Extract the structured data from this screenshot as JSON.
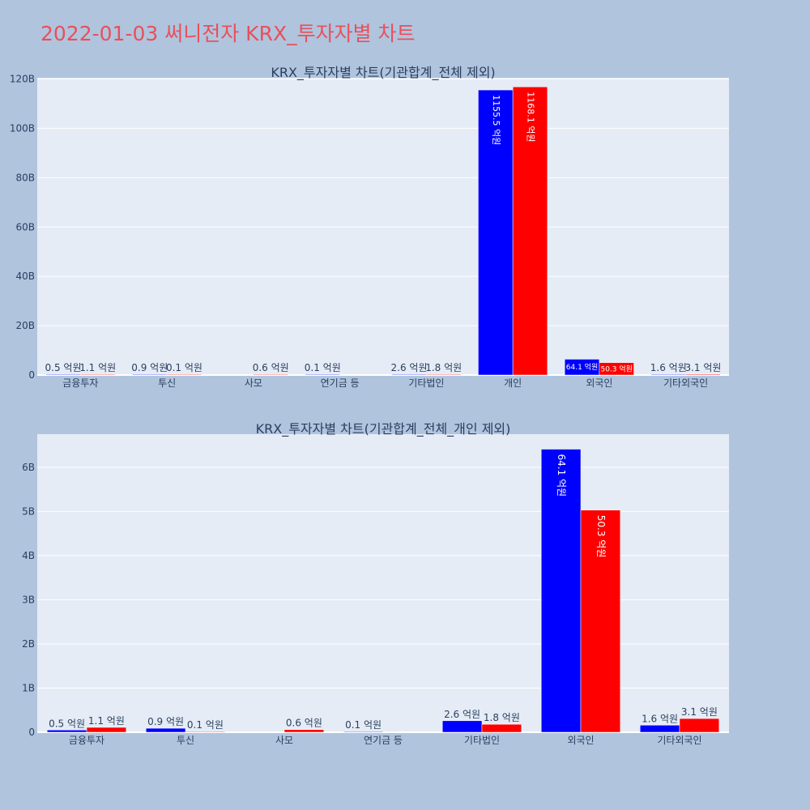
{
  "page": {
    "title": "2022-01-03 써니전자 KRX_투자자별 차트"
  },
  "colors": {
    "background": "#b0c4de",
    "plot_background": "#e5ecf6",
    "title": "#e8505b",
    "series_a": "#0000ff",
    "series_b": "#ff0000",
    "text": "#2a3f5f"
  },
  "chart_data": [
    {
      "type": "bar",
      "title": "KRX_투자자별 차트(기관합계_전체 제외)",
      "categories": [
        "금융투자",
        "투신",
        "사모",
        "연기금 등",
        "기타법인",
        "개인",
        "외국인",
        "기타외국인"
      ],
      "series": [
        {
          "color": "#0000ff",
          "values": [
            0.05,
            0.09,
            null,
            0.01,
            0.26,
            115.55,
            6.41,
            0.16
          ],
          "labels": [
            "0.5 억원",
            "0.9 억원",
            "",
            "0.1 억원",
            "2.6 억원",
            "1155.5 억원",
            "64.1 억원",
            "1.6 억원"
          ]
        },
        {
          "color": "#ff0000",
          "values": [
            0.11,
            0.01,
            0.06,
            null,
            0.18,
            116.81,
            5.03,
            0.31
          ],
          "labels": [
            "1.1 억원",
            "0.1 억원",
            "0.6 억원",
            "",
            "1.8 억원",
            "1168.1 억원",
            "50.3 억원",
            "3.1 억원"
          ]
        }
      ],
      "ylim": [
        0,
        120.5
      ],
      "yticks": [
        0,
        20,
        40,
        60,
        80,
        100,
        120
      ],
      "ytick_labels": [
        "0",
        "20B",
        "40B",
        "60B",
        "80B",
        "100B",
        "120B"
      ],
      "xlabel": "",
      "ylabel": "",
      "grid": true,
      "legend": false
    },
    {
      "type": "bar",
      "title": "KRX_투자자별 차트(기관합계_전체_개인 제외)",
      "categories": [
        "금융투자",
        "투신",
        "사모",
        "연기금 등",
        "기타법인",
        "외국인",
        "기타외국인"
      ],
      "series": [
        {
          "color": "#0000ff",
          "values": [
            0.05,
            0.09,
            null,
            0.01,
            0.26,
            6.41,
            0.16
          ],
          "labels": [
            "0.5 억원",
            "0.9 억원",
            "",
            "0.1 억원",
            "2.6 억원",
            "64.1 억원",
            "1.6 억원"
          ]
        },
        {
          "color": "#ff0000",
          "values": [
            0.11,
            0.01,
            0.06,
            null,
            0.18,
            5.03,
            0.31
          ],
          "labels": [
            "1.1 억원",
            "0.1 억원",
            "0.6 억원",
            "",
            "1.8 억원",
            "50.3 억원",
            "3.1 억원"
          ]
        }
      ],
      "ylim": [
        0,
        6.75
      ],
      "yticks": [
        0,
        1,
        2,
        3,
        4,
        5,
        6
      ],
      "ytick_labels": [
        "0",
        "1B",
        "2B",
        "3B",
        "4B",
        "5B",
        "6B"
      ],
      "xlabel": "",
      "ylabel": "",
      "grid": true,
      "legend": false
    }
  ]
}
